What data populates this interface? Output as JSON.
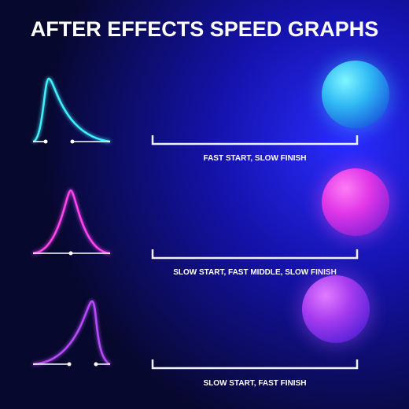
{
  "title": "AFTER EFFECTS SPEED GRAPHS",
  "rows": [
    {
      "label": "FAST START, SLOW FINISH"
    },
    {
      "label": "SLOW START, FAST MIDDLE, SLOW FINISH"
    },
    {
      "label": "SLOW START, FAST FINISH"
    }
  ]
}
